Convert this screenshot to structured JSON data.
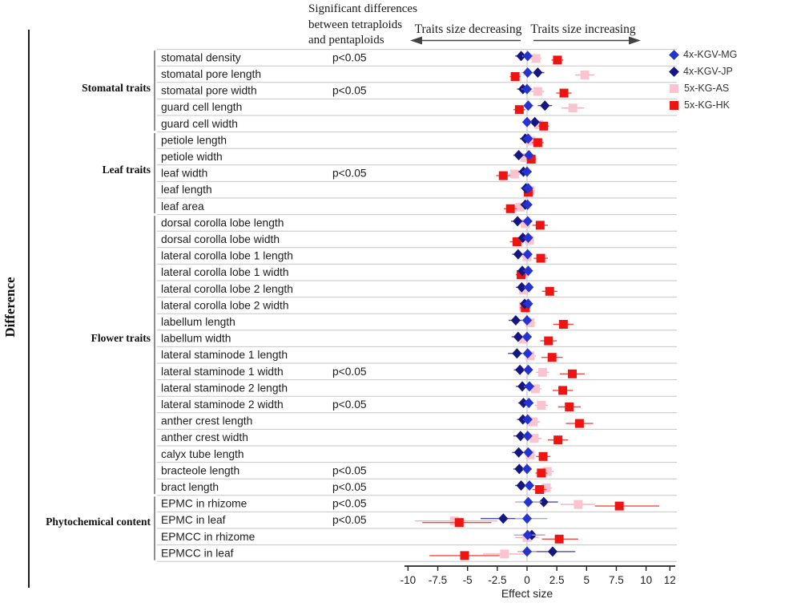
{
  "figure": {
    "y_axis_label": "Difference",
    "significance_note": "Significant differences\nbetween tetraploids\nand pentaploids",
    "arrow_left_label": "Traits size decreasing",
    "arrow_right_label": "Traits size increasing",
    "significance_text": "p<0.05"
  },
  "legend": [
    {
      "label": "4x-KGV-MG",
      "marker": "diamond",
      "color": "#2433d2",
      "line_color": "#a9aec4"
    },
    {
      "label": "4x-KGV-JP",
      "marker": "diamond",
      "color": "#15167f",
      "line_color": "#4a4ca6"
    },
    {
      "label": "5x-KG-AS",
      "marker": "square",
      "color": "#f9c4cf",
      "line_color": "#f5aebe"
    },
    {
      "label": "5x-KG-HK",
      "marker": "square",
      "color": "#ee1411",
      "line_color": "#f04a42"
    }
  ],
  "chart_data": {
    "type": "scatter",
    "subtype": "forest-plot",
    "title": "",
    "xlabel": "Effect size",
    "x_ticks": [
      -10,
      -7.5,
      -5,
      -2.5,
      0,
      2.5,
      5,
      7.5,
      10,
      12
    ],
    "xlim": [
      -10.3,
      12.45
    ],
    "zero_line": 0,
    "grid": "horizontal-row-separators",
    "legend_position": "top-right",
    "series_names": [
      "4x-KGV-MG",
      "4x-KGV-JP",
      "5x-KG-AS",
      "5x-KG-HK"
    ],
    "point_format": "[effect, ci_low, ci_high] per series, series order = series_names",
    "groups": [
      {
        "name": "Stomatal traits",
        "rows": [
          {
            "label": "stomatal density",
            "p": "p<0.05",
            "pts": [
              [
                0.05,
                -0.4,
                0.5
              ],
              [
                -0.5,
                -1.0,
                0.0
              ],
              [
                0.75,
                0.3,
                1.2
              ],
              [
                2.55,
                2.05,
                3.05
              ]
            ]
          },
          {
            "label": "stomatal pore length",
            "p": "",
            "pts": [
              [
                0.05,
                -0.45,
                0.55
              ],
              [
                0.9,
                0.35,
                1.45
              ],
              [
                4.85,
                4.05,
                5.65
              ],
              [
                -1.0,
                -1.45,
                -0.55
              ]
            ]
          },
          {
            "label": "stomatal pore width",
            "p": "p<0.05",
            "pts": [
              [
                0.0,
                -0.45,
                0.45
              ],
              [
                -0.35,
                -0.85,
                0.15
              ],
              [
                0.9,
                0.35,
                1.45
              ],
              [
                3.1,
                2.45,
                3.75
              ]
            ]
          },
          {
            "label": "guard cell length",
            "p": "",
            "pts": [
              [
                0.1,
                -0.35,
                0.55
              ],
              [
                1.5,
                0.9,
                2.1
              ],
              [
                3.85,
                2.9,
                4.8
              ],
              [
                -0.65,
                -1.15,
                -0.15
              ]
            ]
          },
          {
            "label": "guard cell width",
            "p": "",
            "pts": [
              [
                0.0,
                -0.4,
                0.4
              ],
              [
                0.65,
                0.15,
                1.15
              ],
              [
                1.0,
                0.5,
                1.5
              ],
              [
                1.4,
                0.95,
                1.85
              ]
            ]
          }
        ]
      },
      {
        "name": "Leaf traits",
        "rows": [
          {
            "label": "petiole length",
            "p": "",
            "pts": [
              [
                0.1,
                -0.3,
                0.5
              ],
              [
                -0.15,
                -0.6,
                0.3
              ],
              [
                0.3,
                -0.15,
                0.75
              ],
              [
                0.9,
                0.4,
                1.4
              ]
            ]
          },
          {
            "label": "petiole width",
            "p": "",
            "pts": [
              [
                0.15,
                -0.25,
                0.55
              ],
              [
                -0.7,
                -1.15,
                -0.25
              ],
              [
                -0.2,
                -0.6,
                0.2
              ],
              [
                0.35,
                -0.05,
                0.75
              ]
            ]
          },
          {
            "label": "leaf width",
            "p": "p<0.05",
            "pts": [
              [
                0.0,
                -0.4,
                0.4
              ],
              [
                -0.3,
                -0.75,
                0.15
              ],
              [
                -1.05,
                -1.55,
                -0.55
              ],
              [
                -2.0,
                -2.6,
                -1.4
              ]
            ]
          },
          {
            "label": "leaf length",
            "p": "",
            "pts": [
              [
                0.1,
                -0.3,
                0.5
              ],
              [
                -0.1,
                -0.5,
                0.3
              ],
              [
                0.25,
                -0.15,
                0.65
              ],
              [
                0.1,
                -0.3,
                0.5
              ]
            ]
          },
          {
            "label": "leaf area",
            "p": "",
            "pts": [
              [
                0.05,
                -0.35,
                0.45
              ],
              [
                -0.15,
                -0.55,
                0.25
              ],
              [
                -0.6,
                -1.05,
                -0.15
              ],
              [
                -1.4,
                -1.95,
                -0.85
              ]
            ]
          }
        ]
      },
      {
        "name": "Flower traits",
        "rows": [
          {
            "label": "dorsal corolla lobe length",
            "p": "",
            "pts": [
              [
                0.05,
                -0.35,
                0.45
              ],
              [
                -0.8,
                -1.35,
                -0.25
              ],
              [
                -0.15,
                -0.6,
                0.3
              ],
              [
                1.1,
                0.45,
                1.75
              ]
            ]
          },
          {
            "label": "dorsal corolla lobe width",
            "p": "",
            "pts": [
              [
                0.1,
                -0.3,
                0.5
              ],
              [
                -0.35,
                -0.8,
                0.1
              ],
              [
                0.2,
                -0.2,
                0.6
              ],
              [
                -0.85,
                -1.45,
                -0.25
              ]
            ]
          },
          {
            "label": "lateral corolla lobe 1 length",
            "p": "",
            "pts": [
              [
                0.05,
                -0.35,
                0.45
              ],
              [
                -0.75,
                -1.25,
                -0.25
              ],
              [
                0.0,
                -0.4,
                0.4
              ],
              [
                1.15,
                0.55,
                1.75
              ]
            ]
          },
          {
            "label": "lateral corolla lobe 1 width",
            "p": "",
            "pts": [
              [
                0.1,
                -0.3,
                0.5
              ],
              [
                -0.4,
                -0.85,
                0.05
              ],
              [
                -0.25,
                -0.65,
                0.15
              ],
              [
                -0.5,
                -0.95,
                -0.05
              ]
            ]
          },
          {
            "label": "lateral corolla lobe 2 length",
            "p": "",
            "pts": [
              [
                0.15,
                -0.25,
                0.55
              ],
              [
                -0.45,
                -0.95,
                0.05
              ],
              [
                -0.3,
                -0.7,
                0.1
              ],
              [
                1.9,
                1.25,
                2.55
              ]
            ]
          },
          {
            "label": "lateral corolla lobe 2 width",
            "p": "",
            "pts": [
              [
                0.1,
                -0.3,
                0.5
              ],
              [
                -0.2,
                -0.6,
                0.2
              ],
              [
                -0.3,
                -0.7,
                0.1
              ],
              [
                -0.15,
                -0.6,
                0.3
              ]
            ]
          },
          {
            "label": "labellum length",
            "p": "",
            "pts": [
              [
                0.0,
                -0.45,
                0.45
              ],
              [
                -0.95,
                -1.55,
                -0.35
              ],
              [
                0.25,
                -0.2,
                0.7
              ],
              [
                3.05,
                2.2,
                3.9
              ]
            ]
          },
          {
            "label": "labellum width",
            "p": "",
            "pts": [
              [
                0.0,
                -0.4,
                0.4
              ],
              [
                -0.75,
                -1.3,
                -0.2
              ],
              [
                -0.3,
                -0.75,
                0.15
              ],
              [
                1.8,
                1.1,
                2.5
              ]
            ]
          },
          {
            "label": "lateral staminode 1 length",
            "p": "",
            "pts": [
              [
                0.05,
                -0.4,
                0.5
              ],
              [
                -0.85,
                -1.6,
                -0.1
              ],
              [
                0.25,
                -0.25,
                0.75
              ],
              [
                2.1,
                1.2,
                3.0
              ]
            ]
          },
          {
            "label": "lateral staminode 1 width",
            "p": "p<0.05",
            "pts": [
              [
                0.1,
                -0.3,
                0.5
              ],
              [
                -0.6,
                -1.1,
                -0.1
              ],
              [
                1.3,
                0.75,
                1.85
              ],
              [
                3.8,
                2.75,
                4.85
              ]
            ]
          },
          {
            "label": "lateral staminode 2 length",
            "p": "",
            "pts": [
              [
                0.2,
                -0.25,
                0.65
              ],
              [
                -0.4,
                -0.95,
                0.15
              ],
              [
                0.7,
                0.2,
                1.2
              ],
              [
                3.0,
                2.15,
                3.85
              ]
            ]
          },
          {
            "label": "lateral staminode 2 width",
            "p": "p<0.05",
            "pts": [
              [
                0.15,
                -0.25,
                0.55
              ],
              [
                -0.3,
                -0.75,
                0.15
              ],
              [
                1.2,
                0.65,
                1.75
              ],
              [
                3.55,
                2.6,
                4.5
              ]
            ]
          },
          {
            "label": "anther crest  length",
            "p": "",
            "pts": [
              [
                0.05,
                -0.35,
                0.45
              ],
              [
                -0.35,
                -0.85,
                0.15
              ],
              [
                0.5,
                -0.1,
                1.1
              ],
              [
                4.4,
                3.25,
                5.55
              ]
            ]
          },
          {
            "label": "anther crest  width",
            "p": "",
            "pts": [
              [
                0.05,
                -0.35,
                0.45
              ],
              [
                -0.55,
                -1.15,
                0.05
              ],
              [
                0.6,
                0.0,
                1.2
              ],
              [
                2.6,
                1.75,
                3.45
              ]
            ]
          },
          {
            "label": "calyx tube length",
            "p": "",
            "pts": [
              [
                0.1,
                -0.3,
                0.5
              ],
              [
                -0.7,
                -1.25,
                -0.15
              ],
              [
                0.25,
                -0.2,
                0.7
              ],
              [
                1.35,
                0.75,
                1.95
              ]
            ]
          },
          {
            "label": "bracteole length",
            "p": "p<0.05",
            "pts": [
              [
                0.0,
                -0.4,
                0.4
              ],
              [
                -0.65,
                -1.15,
                -0.15
              ],
              [
                1.7,
                1.15,
                2.25
              ],
              [
                1.2,
                0.7,
                1.7
              ]
            ]
          },
          {
            "label": "bract length",
            "p": "p<0.05",
            "pts": [
              [
                0.2,
                -0.2,
                0.6
              ],
              [
                -0.5,
                -1.0,
                0.0
              ],
              [
                1.6,
                1.1,
                2.1
              ],
              [
                1.05,
                0.45,
                1.65
              ]
            ]
          }
        ]
      },
      {
        "name": "Phytochemical content",
        "rows": [
          {
            "label": "EPMC in rhizome",
            "p": "p<0.05",
            "pts": [
              [
                0.1,
                -1.0,
                1.25
              ],
              [
                1.4,
                0.1,
                2.6
              ],
              [
                4.3,
                2.8,
                5.7
              ],
              [
                7.75,
                5.7,
                11.1
              ]
            ]
          },
          {
            "label": "EPMC in leaf",
            "p": "p<0.05",
            "pts": [
              [
                0.0,
                -1.0,
                1.7
              ],
              [
                -2.0,
                -3.9,
                0.0
              ],
              [
                -6.1,
                -9.4,
                -2.5
              ],
              [
                -5.7,
                -8.8,
                -3.0
              ]
            ]
          },
          {
            "label": "EPMCC in rhizome",
            "p": "",
            "pts": [
              [
                0.05,
                -1.1,
                1.5
              ],
              [
                0.4,
                -0.5,
                1.5
              ],
              [
                0.0,
                -1.0,
                1.0
              ],
              [
                2.7,
                1.25,
                4.3
              ]
            ]
          },
          {
            "label": "EPMCC in leaf",
            "p": "",
            "pts": [
              [
                0.0,
                -0.8,
                0.8
              ],
              [
                2.15,
                0.05,
                4.05
              ],
              [
                -1.9,
                -3.7,
                0.05
              ],
              [
                -5.25,
                -8.2,
                -2.3
              ]
            ]
          }
        ]
      }
    ]
  }
}
